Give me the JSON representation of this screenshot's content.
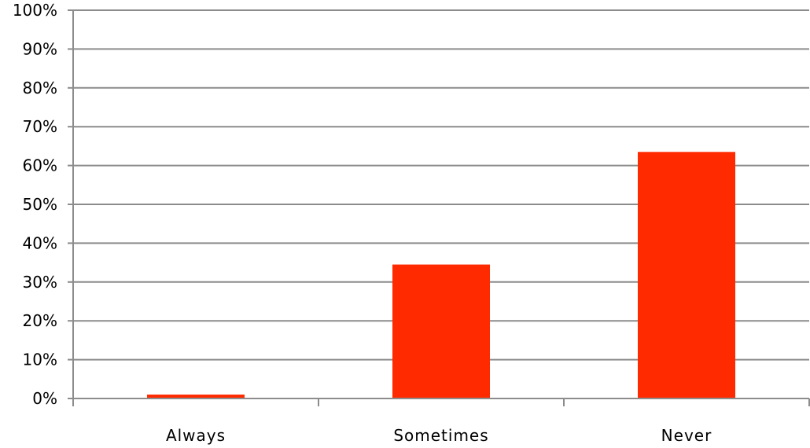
{
  "chart_data": {
    "type": "bar",
    "categories": [
      "Always",
      "Sometimes",
      "Never"
    ],
    "values": [
      1,
      34.5,
      63.5
    ],
    "title": "",
    "xlabel": "",
    "ylabel": "",
    "ylim": [
      0,
      100
    ],
    "y_ticks": [
      "0%",
      "10%",
      "20%",
      "30%",
      "40%",
      "50%",
      "60%",
      "70%",
      "80%",
      "90%",
      "100%"
    ],
    "grid": true,
    "bar_color": "#ff2a00",
    "grid_color": "#8c8c8c",
    "axis_color": "#8c8c8c"
  }
}
